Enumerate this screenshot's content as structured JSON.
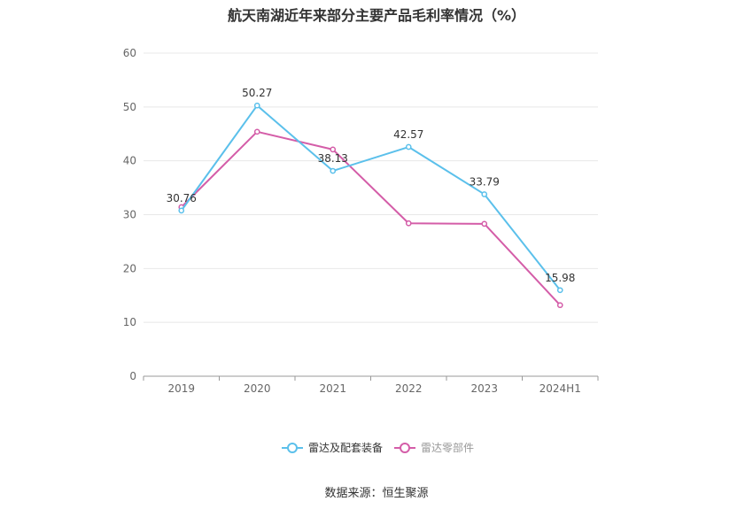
{
  "chart_data": {
    "type": "line",
    "title": "航天南湖近年来部分主要产品毛利率情况（%）",
    "categories": [
      "2019",
      "2020",
      "2021",
      "2022",
      "2023",
      "2024H1"
    ],
    "ylim": [
      0,
      60
    ],
    "yticks": [
      0,
      10,
      20,
      30,
      40,
      50,
      60
    ],
    "grid": true,
    "legend_position": "bottom",
    "series": [
      {
        "name": "雷达及配套装备",
        "color": "#5bc0eb",
        "values": [
          30.76,
          50.27,
          38.13,
          42.57,
          33.79,
          15.98
        ],
        "labels": [
          "30.76",
          "50.27",
          "38.13",
          "42.57",
          "33.79",
          "15.98"
        ]
      },
      {
        "name": "雷达零部件",
        "color": "#d45da8",
        "values": [
          31.4,
          45.4,
          42.1,
          28.4,
          28.3,
          13.2
        ],
        "labels": [
          "",
          "",
          "",
          "",
          "",
          ""
        ]
      }
    ]
  },
  "source": "数据来源：恒生聚源"
}
